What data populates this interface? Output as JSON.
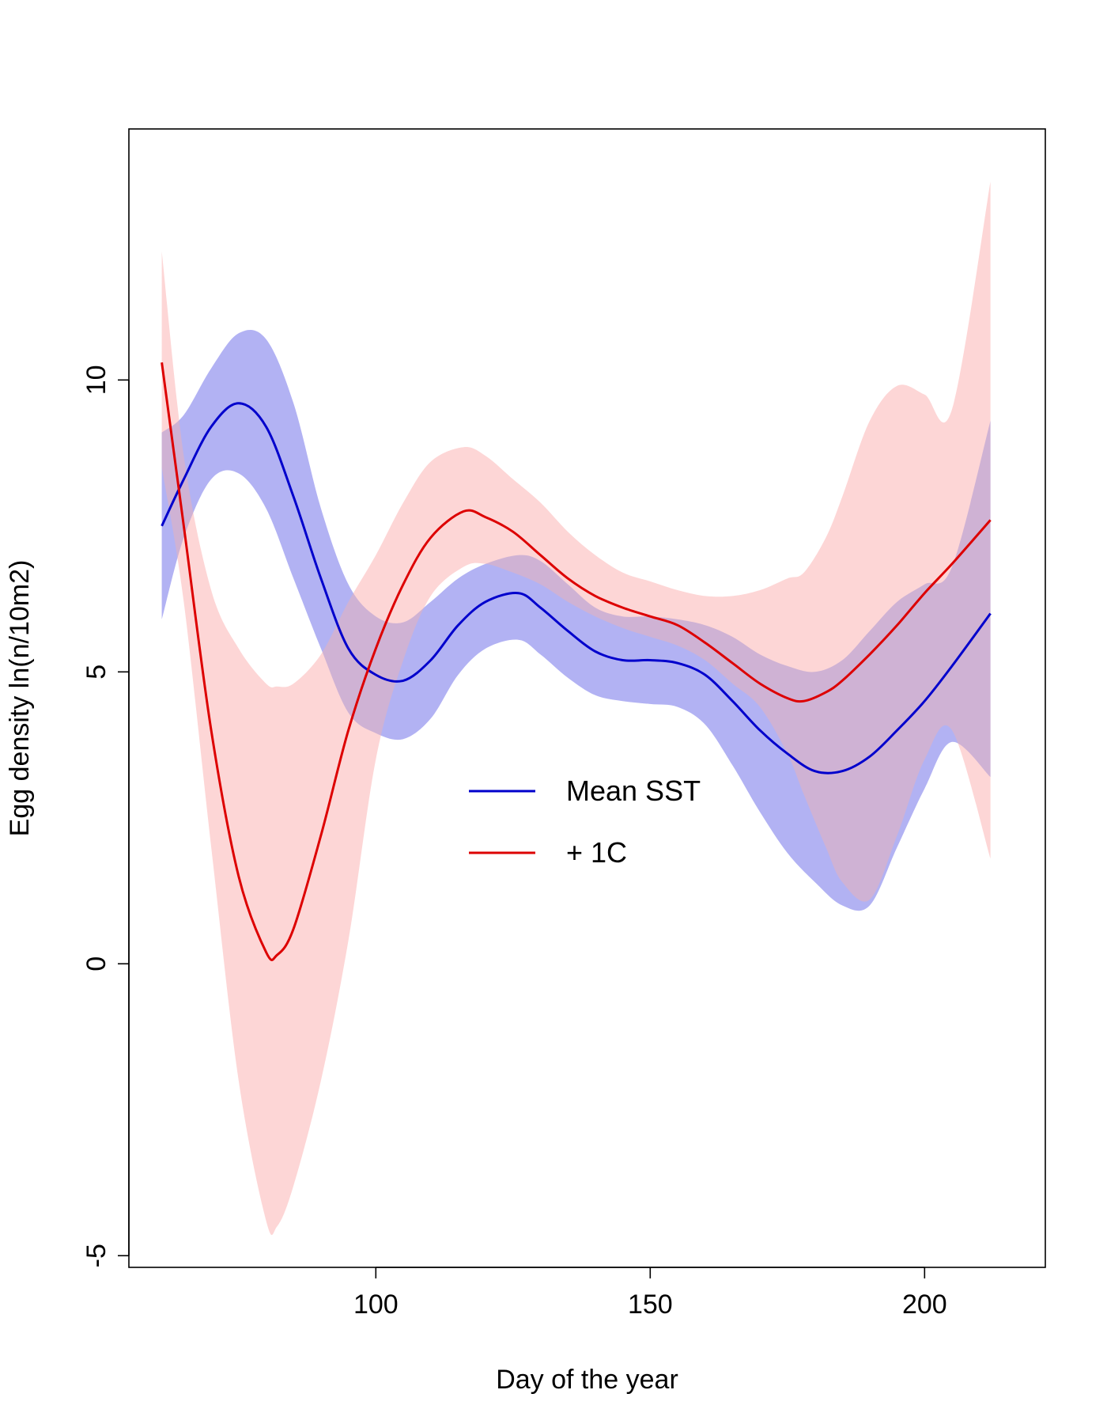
{
  "chart_data": {
    "type": "line",
    "title": "",
    "xlabel": "Day of the year",
    "ylabel": "Egg density ln(n/10m2)",
    "xlim": [
      55,
      222
    ],
    "ylim": [
      -5.2,
      14.3
    ],
    "xticks": [
      100,
      150,
      200
    ],
    "yticks": [
      -5,
      0,
      5,
      10
    ],
    "grid": false,
    "legend_position": "center",
    "series": [
      {
        "name": "Mean SST",
        "color": "#0000cc",
        "band_color": "#c8c8ff",
        "x": [
          61,
          65,
          70,
          75,
          80,
          85,
          90,
          95,
          100,
          105,
          110,
          115,
          120,
          126,
          130,
          135,
          140,
          145,
          150,
          155,
          160,
          165,
          170,
          175,
          180,
          185,
          190,
          195,
          200,
          205,
          212
        ],
        "y": [
          7.5,
          8.3,
          9.2,
          9.6,
          9.2,
          8.0,
          6.6,
          5.4,
          4.95,
          4.85,
          5.2,
          5.8,
          6.2,
          6.35,
          6.1,
          5.7,
          5.35,
          5.2,
          5.2,
          5.15,
          4.95,
          4.5,
          4.0,
          3.6,
          3.3,
          3.3,
          3.55,
          4.0,
          4.5,
          5.1,
          6.0
        ],
        "lower": [
          5.9,
          7.3,
          8.3,
          8.4,
          7.8,
          6.6,
          5.4,
          4.3,
          3.95,
          3.85,
          4.2,
          4.95,
          5.4,
          5.55,
          5.3,
          4.9,
          4.6,
          4.5,
          4.45,
          4.4,
          4.1,
          3.4,
          2.6,
          1.9,
          1.4,
          1.0,
          1.0,
          2.0,
          3.0,
          3.8,
          3.2
        ],
        "upper": [
          9.1,
          9.4,
          10.2,
          10.8,
          10.7,
          9.6,
          7.8,
          6.5,
          5.95,
          5.85,
          6.2,
          6.6,
          6.85,
          7.0,
          6.9,
          6.5,
          6.1,
          5.95,
          5.95,
          5.9,
          5.8,
          5.6,
          5.3,
          5.1,
          5.0,
          5.2,
          5.7,
          6.2,
          6.5,
          6.8,
          9.3
        ]
      },
      {
        "name": "+ 1C",
        "color": "#dd0000",
        "band_color": "#fcc8c8",
        "x": [
          61,
          65,
          70,
          75,
          80,
          82,
          85,
          90,
          95,
          100,
          105,
          110,
          116,
          120,
          125,
          130,
          135,
          140,
          145,
          150,
          155,
          160,
          165,
          170,
          175,
          178,
          182,
          185,
          190,
          195,
          200,
          205,
          212
        ],
        "y": [
          10.3,
          7.5,
          4.0,
          1.5,
          0.2,
          0.15,
          0.6,
          2.2,
          4.0,
          5.4,
          6.5,
          7.3,
          7.75,
          7.65,
          7.4,
          7.0,
          6.6,
          6.3,
          6.1,
          5.95,
          5.8,
          5.5,
          5.15,
          4.8,
          4.55,
          4.5,
          4.65,
          4.85,
          5.3,
          5.8,
          6.35,
          6.85,
          7.6
        ],
        "lower": [
          8.5,
          6.2,
          2.0,
          -2.0,
          -4.4,
          -4.5,
          -3.8,
          -2.0,
          0.4,
          3.5,
          5.2,
          6.3,
          6.8,
          6.85,
          6.7,
          6.5,
          6.2,
          5.95,
          5.75,
          5.6,
          5.45,
          5.2,
          4.8,
          4.4,
          3.6,
          2.9,
          2.0,
          1.4,
          1.1,
          2.2,
          3.5,
          4.0,
          1.8
        ],
        "upper": [
          12.2,
          8.7,
          6.4,
          5.4,
          4.8,
          4.75,
          4.8,
          5.3,
          6.2,
          7.0,
          7.9,
          8.6,
          8.85,
          8.7,
          8.3,
          7.9,
          7.4,
          7.0,
          6.7,
          6.55,
          6.4,
          6.3,
          6.3,
          6.4,
          6.6,
          6.7,
          7.3,
          8.0,
          9.3,
          9.9,
          9.75,
          9.5,
          13.4
        ]
      }
    ]
  }
}
